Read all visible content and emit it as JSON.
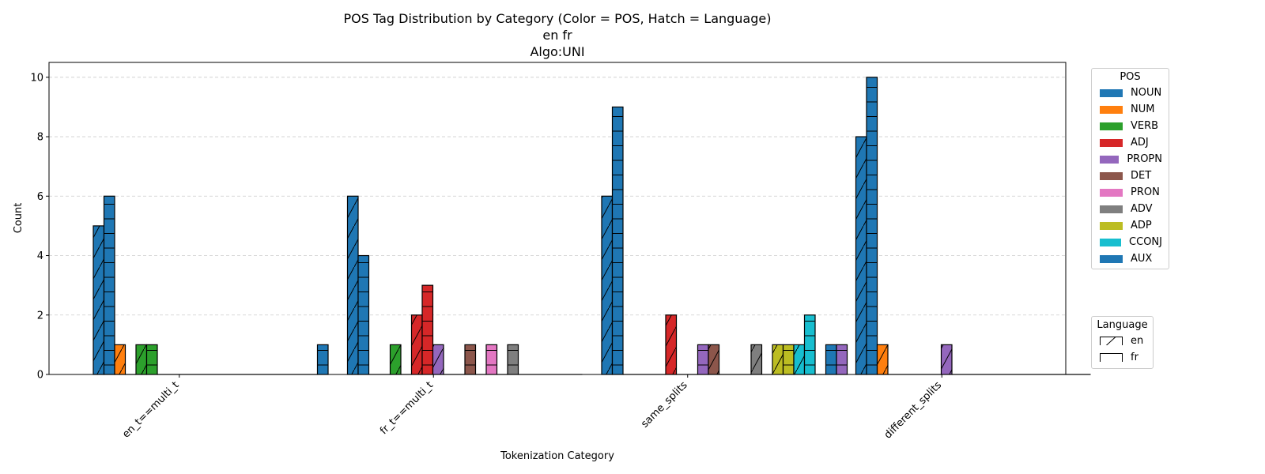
{
  "chart_data": {
    "type": "bar",
    "title": "POS Tag Distribution by Category (Color = POS, Hatch = Language)",
    "subtitle_lines": [
      "en fr",
      "Algo:UNI"
    ],
    "xlabel": "Tokenization Category",
    "ylabel": "Count",
    "ylim": [
      0,
      10.5
    ],
    "yticks": [
      0,
      2,
      4,
      6,
      8,
      10
    ],
    "grid": "y-dashed",
    "categories": [
      "en_t==multi_t",
      "fr_t==multi_t",
      "same_splits",
      "different_splits"
    ],
    "languages": [
      {
        "name": "en",
        "hatch": "diagonal"
      },
      {
        "name": "fr",
        "hatch": "horizontal"
      }
    ],
    "pos_legend_title": "POS",
    "language_legend_title": "Language",
    "series": [
      {
        "name": "NOUN",
        "color": "#1f77b4",
        "values": {
          "en": [
            5,
            6,
            6,
            8
          ],
          "fr": [
            6,
            4,
            9,
            10
          ]
        }
      },
      {
        "name": "NUM",
        "color": "#ff7f0e",
        "values": {
          "en": [
            1,
            0,
            0,
            1
          ],
          "fr": [
            0,
            0,
            0,
            0
          ]
        }
      },
      {
        "name": "VERB",
        "color": "#2ca02c",
        "values": {
          "en": [
            1,
            1,
            0,
            0
          ],
          "fr": [
            1,
            0,
            0,
            0
          ]
        }
      },
      {
        "name": "ADJ",
        "color": "#d62728",
        "values": {
          "en": [
            0,
            2,
            2,
            0
          ],
          "fr": [
            0,
            3,
            0,
            0
          ]
        }
      },
      {
        "name": "PROPN",
        "color": "#9467bd",
        "values": {
          "en": [
            0,
            1,
            0,
            1
          ],
          "fr": [
            0,
            0,
            1,
            0
          ]
        }
      },
      {
        "name": "DET",
        "color": "#8c564b",
        "values": {
          "en": [
            0,
            0,
            1,
            0
          ],
          "fr": [
            0,
            1,
            0,
            0
          ]
        }
      },
      {
        "name": "PRON",
        "color": "#e377c2",
        "values": {
          "en": [
            0,
            0,
            0,
            0
          ],
          "fr": [
            0,
            1,
            0,
            0
          ]
        }
      },
      {
        "name": "ADV",
        "color": "#7f7f7f",
        "values": {
          "en": [
            0,
            0,
            1,
            0
          ],
          "fr": [
            0,
            1,
            0,
            0
          ]
        }
      },
      {
        "name": "ADP",
        "color": "#bcbd22",
        "values": {
          "en": [
            0,
            0,
            1,
            0
          ],
          "fr": [
            0,
            0,
            1,
            0
          ]
        }
      },
      {
        "name": "CCONJ",
        "color": "#17becf",
        "values": {
          "en": [
            0,
            0,
            1,
            0
          ],
          "fr": [
            0,
            0,
            2,
            0
          ]
        }
      },
      {
        "name": "AUX",
        "color": "#1f77b4",
        "values": {
          "en": [
            0,
            0,
            0,
            0
          ],
          "fr": [
            1,
            0,
            1,
            0
          ]
        }
      }
    ],
    "same_splits_extra": [
      {
        "name": "PROPN",
        "color": "#9467bd",
        "lang": "fr",
        "value": 1
      }
    ]
  }
}
